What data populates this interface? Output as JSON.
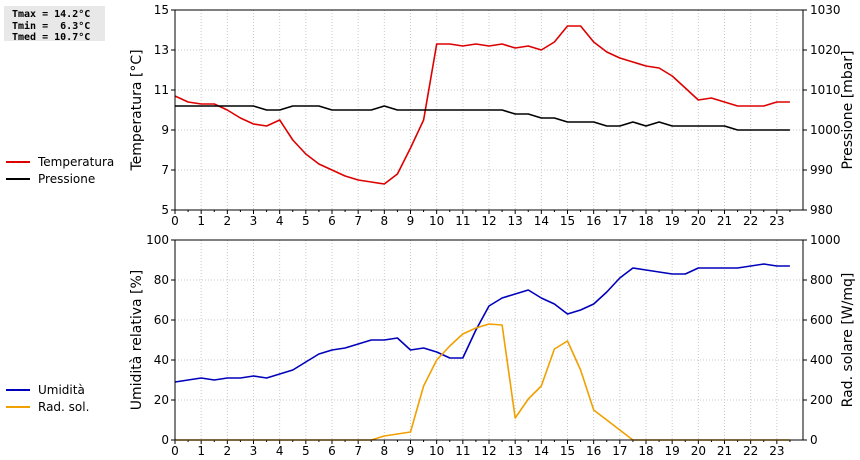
{
  "stats": {
    "lines": [
      "Tmax = 14.2°C",
      "Tmin =  6.3°C",
      "Tmed = 10.7°C"
    ]
  },
  "colors": {
    "temperature": "#dd0000",
    "pressure": "#000000",
    "humidity": "#0000bb",
    "radiation": "#f0a000"
  },
  "chart_data": [
    {
      "type": "line",
      "xlim": [
        0,
        24
      ],
      "x_ticks": [
        "0",
        "1",
        "2",
        "3",
        "4",
        "5",
        "6",
        "7",
        "8",
        "9",
        "10",
        "11",
        "12",
        "13",
        "14",
        "15",
        "16",
        "17",
        "18",
        "19",
        "20",
        "21",
        "22",
        "23"
      ],
      "ylabel": "Temperatura [°C]",
      "ylim": [
        5,
        15
      ],
      "y_ticks": [
        "5",
        "7",
        "9",
        "11",
        "13",
        "15"
      ],
      "y2label": "Pressione [mbar]",
      "y2lim": [
        980,
        1030
      ],
      "y2_ticks": [
        "980",
        "990",
        "1000",
        "1010",
        "1020",
        "1030"
      ],
      "grid": true,
      "legend_position": "left",
      "series": [
        {
          "name": "Temperatura",
          "axis": "left",
          "x": [
            0,
            0.5,
            1,
            1.5,
            2,
            2.5,
            3,
            3.5,
            4,
            4.5,
            5,
            5.5,
            6,
            6.5,
            7,
            7.5,
            8,
            8.5,
            9,
            9.5,
            10,
            10.5,
            11,
            11.5,
            12,
            12.5,
            13,
            13.5,
            14,
            14.5,
            15,
            15.5,
            16,
            16.5,
            17,
            17.5,
            18,
            18.5,
            19,
            19.5,
            20,
            20.5,
            21,
            21.5,
            22,
            22.5,
            23,
            23.5
          ],
          "y": [
            10.7,
            10.4,
            10.3,
            10.3,
            10.0,
            9.6,
            9.3,
            9.2,
            9.5,
            8.5,
            7.8,
            7.3,
            7.0,
            6.7,
            6.5,
            6.4,
            6.3,
            6.8,
            8.1,
            9.5,
            13.3,
            13.3,
            13.2,
            13.3,
            13.2,
            13.3,
            13.1,
            13.2,
            13.0,
            13.4,
            14.2,
            14.2,
            13.4,
            12.9,
            12.6,
            12.4,
            12.2,
            12.1,
            11.7,
            11.1,
            10.5,
            10.6,
            10.4,
            10.2,
            10.2,
            10.2,
            10.4,
            10.4
          ]
        },
        {
          "name": "Pressione",
          "axis": "right",
          "x": [
            0,
            0.5,
            1,
            1.5,
            2,
            2.5,
            3,
            3.5,
            4,
            4.5,
            5,
            5.5,
            6,
            6.5,
            7,
            7.5,
            8,
            8.5,
            9,
            9.5,
            10,
            10.5,
            11,
            11.5,
            12,
            12.5,
            13,
            13.5,
            14,
            14.5,
            15,
            15.5,
            16,
            16.5,
            17,
            17.5,
            18,
            18.5,
            19,
            19.5,
            20,
            20.5,
            21,
            21.5,
            22,
            22.5,
            23,
            23.5
          ],
          "y": [
            1006,
            1006,
            1006,
            1006,
            1006,
            1006,
            1006,
            1005,
            1005,
            1006,
            1006,
            1006,
            1005,
            1005,
            1005,
            1005,
            1006,
            1005,
            1005,
            1005,
            1005,
            1005,
            1005,
            1005,
            1005,
            1005,
            1004,
            1004,
            1003,
            1003,
            1002,
            1002,
            1002,
            1001,
            1001,
            1002,
            1001,
            1002,
            1001,
            1001,
            1001,
            1001,
            1001,
            1000,
            1000,
            1000,
            1000,
            1000
          ]
        }
      ]
    },
    {
      "type": "line",
      "xlim": [
        0,
        24
      ],
      "x_ticks": [
        "0",
        "1",
        "2",
        "3",
        "4",
        "5",
        "6",
        "7",
        "8",
        "9",
        "10",
        "11",
        "12",
        "13",
        "14",
        "15",
        "16",
        "17",
        "18",
        "19",
        "20",
        "21",
        "22",
        "23"
      ],
      "ylabel": "Umidità relativa [%]",
      "ylim": [
        0,
        100
      ],
      "y_ticks": [
        "0",
        "20",
        "40",
        "60",
        "80",
        "100"
      ],
      "y2label": "Rad. solare [W/mq]",
      "y2lim": [
        0,
        1000
      ],
      "y2_ticks": [
        "0",
        "200",
        "400",
        "600",
        "800",
        "1000"
      ],
      "grid": true,
      "legend_position": "left",
      "series": [
        {
          "name": "Umidità",
          "axis": "left",
          "x": [
            0,
            0.5,
            1,
            1.5,
            2,
            2.5,
            3,
            3.5,
            4,
            4.5,
            5,
            5.5,
            6,
            6.5,
            7,
            7.5,
            8,
            8.5,
            9,
            9.5,
            10,
            10.5,
            11,
            11.5,
            12,
            12.5,
            13,
            13.5,
            14,
            14.5,
            15,
            15.5,
            16,
            16.5,
            17,
            17.5,
            18,
            18.5,
            19,
            19.5,
            20,
            20.5,
            21,
            21.5,
            22,
            22.5,
            23,
            23.5
          ],
          "y": [
            29,
            30,
            31,
            30,
            31,
            31,
            32,
            31,
            33,
            35,
            39,
            43,
            45,
            46,
            48,
            50,
            50,
            51,
            45,
            46,
            44,
            41,
            41,
            55,
            67,
            71,
            73,
            75,
            71,
            68,
            63,
            65,
            68,
            74,
            81,
            86,
            85,
            84,
            83,
            83,
            86,
            86,
            86,
            86,
            87,
            88,
            87,
            87
          ]
        },
        {
          "name": "Rad. sol.",
          "axis": "right",
          "x": [
            0,
            1,
            2,
            3,
            4,
            5,
            6,
            7,
            7.5,
            8,
            8.5,
            9,
            9.5,
            10,
            10.5,
            11,
            11.5,
            12,
            12.5,
            13,
            13.5,
            14,
            14.5,
            15,
            15.5,
            16,
            16.5,
            17,
            17.5,
            18,
            19,
            20,
            21,
            22,
            23,
            23.5
          ],
          "y": [
            0,
            0,
            0,
            0,
            0,
            0,
            0,
            0,
            0,
            20,
            30,
            40,
            270,
            400,
            470,
            530,
            560,
            580,
            575,
            110,
            205,
            270,
            455,
            495,
            350,
            150,
            100,
            50,
            0,
            0,
            0,
            0,
            0,
            0,
            0,
            0
          ]
        }
      ]
    }
  ]
}
